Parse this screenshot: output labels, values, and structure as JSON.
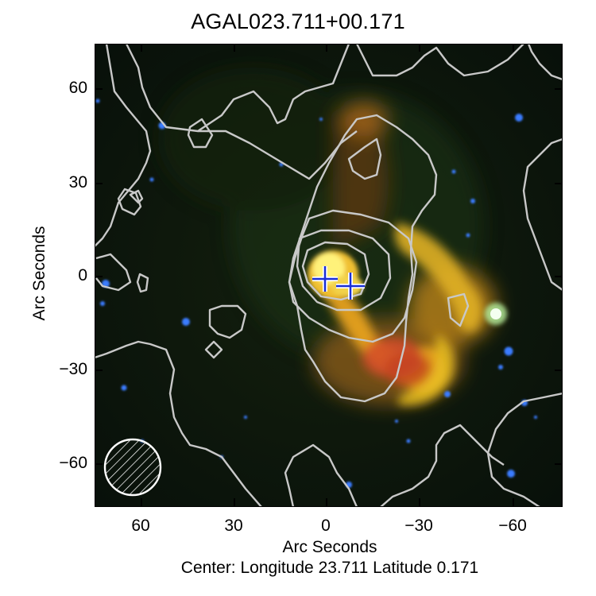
{
  "title": "AGAL023.711+00.171",
  "axes": {
    "xlabel": "Arc Seconds",
    "ylabel": "Arc Seconds",
    "x_ticks": [
      "60",
      "30",
      "0",
      "−30",
      "−60"
    ],
    "y_ticks": [
      "60",
      "30",
      "0",
      "−30",
      "−60"
    ]
  },
  "center_text": "Center:  Longitude 23.711 Latitude 0.171",
  "image": {
    "colors": {
      "background": "#0b130b",
      "emission_core": "#fff27a",
      "emission_mid": "#e7a11d",
      "emission_red": "#d24a2a",
      "contours": "#c8c8c8",
      "markers": "#1a2fd6",
      "stars": "#3a7bff"
    }
  }
}
